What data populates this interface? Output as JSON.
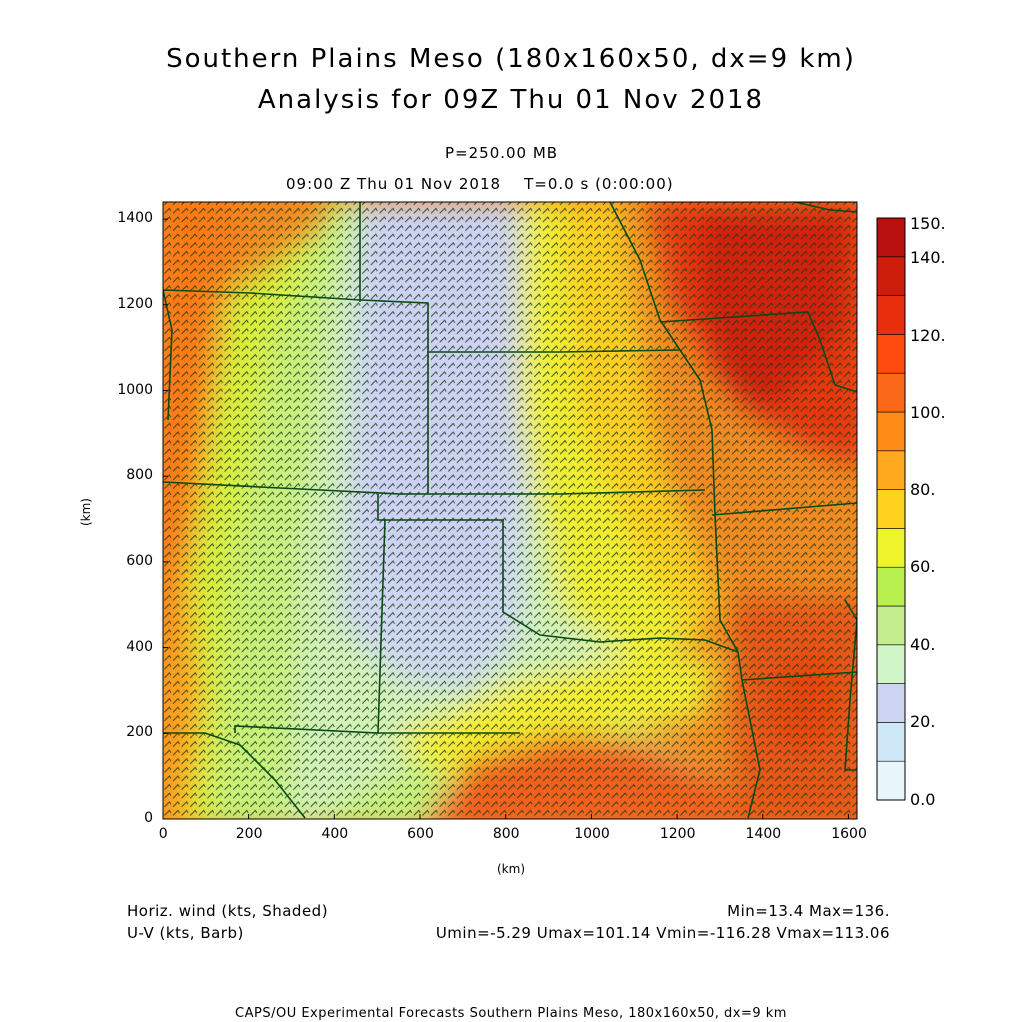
{
  "header": {
    "title_line1": "Southern Plains Meso (180x160x50, dx=9 km)",
    "title_line2": "Analysis for 09Z Thu 01 Nov 2018",
    "pressure": "P=250.00 MB",
    "valid_time": "09:00 Z Thu 01 Nov 2018    T=0.0 s (0:00:00)"
  },
  "axes": {
    "x_label": "(km)",
    "y_label": "(km)",
    "x_ticks": [
      "0",
      "200",
      "400",
      "600",
      "800",
      "1000",
      "1200",
      "1400",
      "1600"
    ],
    "y_ticks": [
      "0",
      "200",
      "400",
      "600",
      "800",
      "1000",
      "1200",
      "1400"
    ]
  },
  "colorbar": {
    "labels": [
      "0.0",
      "20.",
      "40.",
      "60.",
      "80.",
      "100.",
      "120.",
      "140.",
      "150."
    ],
    "colors": [
      "#e8f6fc",
      "#cfe8f7",
      "#cdd4f2",
      "#d0f5c6",
      "#c4ee8e",
      "#b8f04f",
      "#eef42c",
      "#ffd21e",
      "#ffaa1e",
      "#ff8c16",
      "#f96818",
      "#ff4a10",
      "#e82e0c",
      "#cc1e0a",
      "#b80f0f"
    ]
  },
  "footer": {
    "field1": "Horiz. wind (kts, Shaded)",
    "field2": "U-V (kts, Barb)",
    "minmax": "Min=13.4 Max=136.",
    "uv_stats": "Umin=-5.29 Umax=101.14 Vmin=-116.28 Vmax=113.06",
    "credit": "CAPS/OU Experimental Forecasts  Southern Plains Meso, 180x160x50, dx=9 km"
  },
  "colors": {
    "border": "#0a4a14",
    "barb": "#1b3a1b"
  }
}
